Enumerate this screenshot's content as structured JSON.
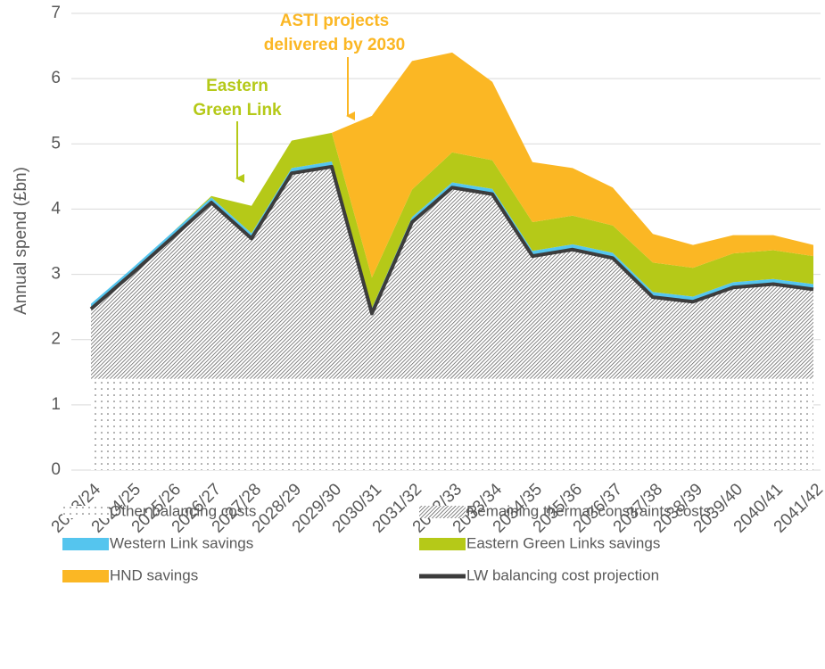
{
  "chart_data": {
    "type": "area",
    "y_label": "Annual spend (£bn)",
    "categories": [
      "2023/24",
      "2024/25",
      "2025/26",
      "2026/27",
      "2027/28",
      "2028/29",
      "2029/30",
      "2030/31",
      "2031/32",
      "2032/33",
      "2033/34",
      "2034/35",
      "2035/36",
      "2036/37",
      "2037/38",
      "2038/39",
      "2039/40",
      "2040/41",
      "2041/42"
    ],
    "series": [
      {
        "name": "Other balancing costs",
        "color": "#595959",
        "pattern": "dots",
        "values": [
          1.4,
          1.4,
          1.4,
          1.4,
          1.4,
          1.4,
          1.4,
          1.4,
          1.4,
          1.4,
          1.4,
          1.4,
          1.4,
          1.4,
          1.4,
          1.4,
          1.4,
          1.4,
          1.4
        ]
      },
      {
        "name": "Remaining thermal constraints costs",
        "color": "#595959",
        "pattern": "hatch",
        "values": [
          1.07,
          1.6,
          2.15,
          2.7,
          2.15,
          3.15,
          3.25,
          1.0,
          2.4,
          2.93,
          2.83,
          1.88,
          1.98,
          1.85,
          1.25,
          1.18,
          1.4,
          1.45,
          1.37
        ]
      },
      {
        "name": "Western Link savings",
        "color": "#55c5ee",
        "values": [
          0.08,
          0.08,
          0.08,
          0.08,
          0.08,
          0.08,
          0.08,
          0.08,
          0.08,
          0.08,
          0.08,
          0.08,
          0.08,
          0.08,
          0.08,
          0.08,
          0.08,
          0.08,
          0.08
        ]
      },
      {
        "name": "Eastern Green Links savings",
        "color": "#b5c918",
        "values": [
          0,
          0,
          0,
          0.02,
          0.42,
          0.42,
          0.44,
          0.47,
          0.42,
          0.46,
          0.44,
          0.44,
          0.44,
          0.42,
          0.45,
          0.44,
          0.44,
          0.44,
          0.43
        ]
      },
      {
        "name": "HND savings",
        "color": "#fbb724",
        "values": [
          0,
          0,
          0,
          0,
          0,
          0,
          0,
          2.48,
          1.97,
          1.53,
          1.2,
          0.92,
          0.73,
          0.58,
          0.44,
          0.35,
          0.28,
          0.23,
          0.17
        ]
      },
      {
        "name": "LW balancing cost projection",
        "color": "#3c3c3c",
        "type": "line",
        "values": [
          2.47,
          3.0,
          3.55,
          4.1,
          3.55,
          4.55,
          4.65,
          2.4,
          3.8,
          4.33,
          4.23,
          3.28,
          3.38,
          3.25,
          2.65,
          2.58,
          2.8,
          2.85,
          2.77
        ]
      }
    ],
    "ylim": [
      0,
      7
    ],
    "yticks": [
      0,
      1,
      2,
      3,
      4,
      5,
      6,
      7
    ],
    "grid": true,
    "annotations": [
      {
        "lines": [
          "Eastern",
          "Green Link"
        ],
        "color": "#b5c918"
      },
      {
        "lines": [
          "ASTI projects",
          "delivered by 2030"
        ],
        "color": "#fbb724"
      }
    ]
  }
}
